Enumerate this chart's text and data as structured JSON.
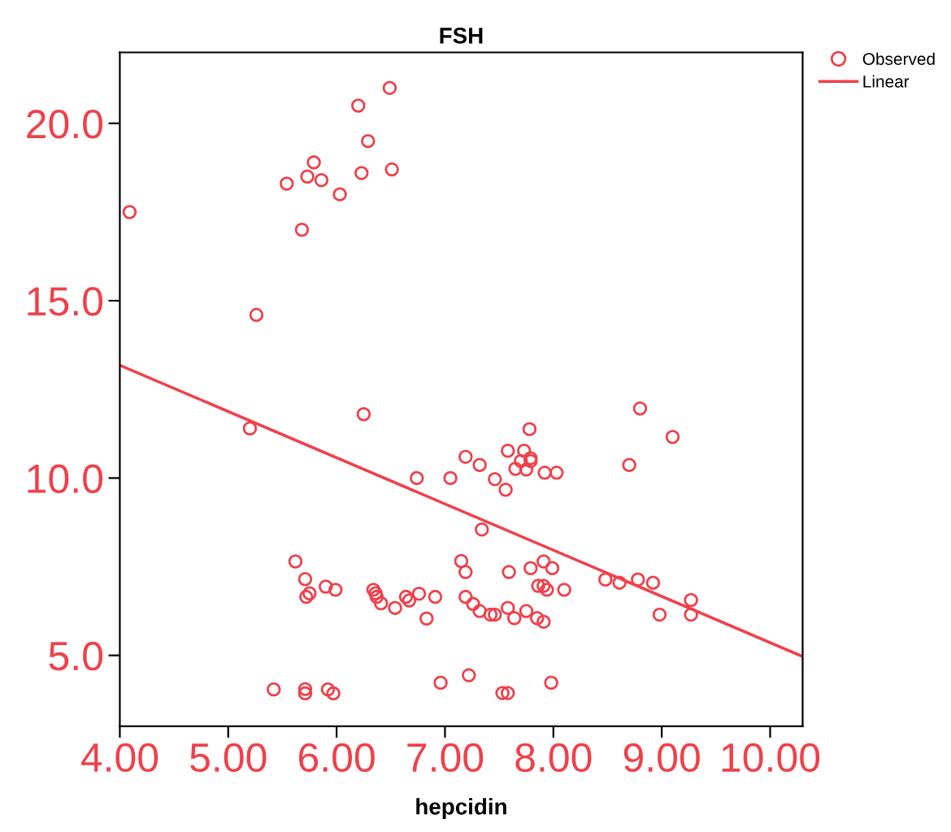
{
  "chart_data": {
    "type": "scatter",
    "title": "FSH",
    "xlabel": "hepcidin",
    "xlim": [
      4.0,
      10.3
    ],
    "ylim": [
      3.0,
      22.0
    ],
    "xticks": [
      {
        "value": 4,
        "label": "4.00"
      },
      {
        "value": 5,
        "label": "5.00"
      },
      {
        "value": 6,
        "label": "6.00"
      },
      {
        "value": 7,
        "label": "7.00"
      },
      {
        "value": 8,
        "label": "8.00"
      },
      {
        "value": 9,
        "label": "9.00"
      },
      {
        "value": 10,
        "label": "10.00"
      }
    ],
    "yticks": [
      {
        "value": 5,
        "label": "5.0"
      },
      {
        "value": 10,
        "label": "10.0"
      },
      {
        "value": 15,
        "label": "15.0"
      },
      {
        "value": 20,
        "label": "20.0"
      }
    ],
    "grid": false,
    "legend": "top right",
    "series": [
      {
        "name": "Observed",
        "marker": "circle",
        "color": "#f0404a",
        "x": [
          6.49,
          6.2,
          6.29,
          5.79,
          5.73,
          5.86,
          5.54,
          6.23,
          6.51,
          6.03,
          4.09,
          5.68,
          5.26,
          6.25,
          5.2,
          7.19,
          6.74,
          7.05,
          5.62,
          5.71,
          5.72,
          5.75,
          5.9,
          5.99,
          6.34,
          6.36,
          6.37,
          6.41,
          6.54,
          6.64,
          6.67,
          6.76,
          6.91,
          6.83,
          7.15,
          7.19,
          7.19,
          5.42,
          5.71,
          5.71,
          5.92,
          5.97,
          6.96,
          7.22,
          8.8,
          9.1,
          7.78,
          7.32,
          7.58,
          7.73,
          7.7,
          7.79,
          7.79,
          7.75,
          7.65,
          7.92,
          8.03,
          7.46,
          7.56,
          8.7,
          7.34,
          7.59,
          7.79,
          7.91,
          7.99,
          7.86,
          7.91,
          7.94,
          8.1,
          8.48,
          8.61,
          8.78,
          8.92,
          9.27,
          9.27,
          8.98,
          7.26,
          7.32,
          7.42,
          7.46,
          7.58,
          7.64,
          7.75,
          7.85,
          7.91,
          7.53,
          7.58,
          7.98
        ],
        "values": [
          21.0,
          20.5,
          19.5,
          18.9,
          18.5,
          18.4,
          18.3,
          18.6,
          18.7,
          18.0,
          17.5,
          17.0,
          14.6,
          11.8,
          11.4,
          10.6,
          10.0,
          10.0,
          7.65,
          7.15,
          6.65,
          6.75,
          6.94,
          6.85,
          6.85,
          6.75,
          6.65,
          6.47,
          6.34,
          6.65,
          6.55,
          6.74,
          6.65,
          6.04,
          7.66,
          7.35,
          6.65,
          4.04,
          4.05,
          3.93,
          4.04,
          3.93,
          4.23,
          4.44,
          11.96,
          11.16,
          11.38,
          10.37,
          10.77,
          10.77,
          10.48,
          10.56,
          10.48,
          10.24,
          10.26,
          10.15,
          10.15,
          9.97,
          9.67,
          10.37,
          8.55,
          7.35,
          7.46,
          7.65,
          7.46,
          6.96,
          6.96,
          6.85,
          6.85,
          7.14,
          7.05,
          7.14,
          7.05,
          6.56,
          6.15,
          6.15,
          6.45,
          6.25,
          6.15,
          6.15,
          6.34,
          6.05,
          6.25,
          6.05,
          5.95,
          3.94,
          3.94,
          4.23
        ]
      },
      {
        "name": "Linear",
        "type": "line",
        "marker": "none",
        "color": "#f0404a",
        "x": [
          4.0,
          10.3
        ],
        "values": [
          13.18,
          4.97
        ]
      }
    ]
  }
}
